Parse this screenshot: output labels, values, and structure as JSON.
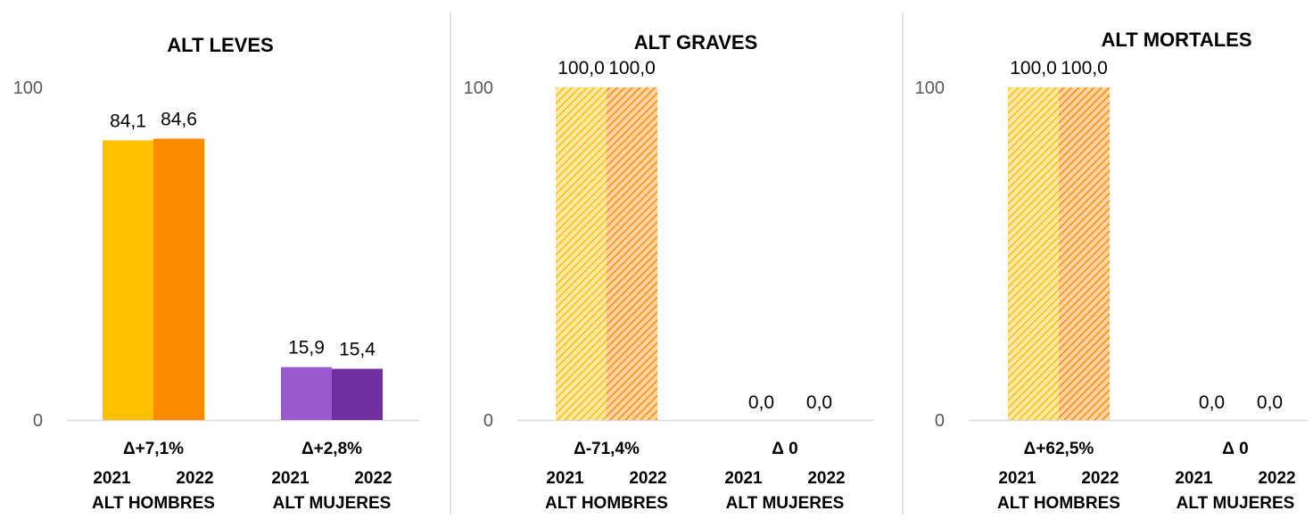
{
  "chart_data": [
    {
      "type": "bar",
      "title": "ALT LEVES",
      "ylim": [
        0,
        100
      ],
      "yticks": [
        0,
        100
      ],
      "grid": false,
      "groups": [
        {
          "label": "ALT HOMBRES",
          "delta": "Δ+7,1%",
          "bars": [
            {
              "year": "2021",
              "value": 84.1,
              "label": "84,1",
              "color": "#FFC000",
              "pattern": "solid"
            },
            {
              "year": "2022",
              "value": 84.6,
              "label": "84,6",
              "color": "#FF8C00",
              "pattern": "solid"
            }
          ]
        },
        {
          "label": "ALT MUJERES",
          "delta": "Δ+2,8%",
          "bars": [
            {
              "year": "2021",
              "value": 15.9,
              "label": "15,9",
              "color": "#9B59D0",
              "pattern": "solid"
            },
            {
              "year": "2022",
              "value": 15.4,
              "label": "15,4",
              "color": "#7030A0",
              "pattern": "solid"
            }
          ]
        }
      ]
    },
    {
      "type": "bar",
      "title": "ALT GRAVES",
      "ylim": [
        0,
        100
      ],
      "yticks": [
        0,
        100
      ],
      "grid": false,
      "groups": [
        {
          "label": "ALT HOMBRES",
          "delta": "Δ-71,4%",
          "bars": [
            {
              "year": "2021",
              "value": 100.0,
              "label": "100,0",
              "color": "#FFC000",
              "pattern": "hatched"
            },
            {
              "year": "2022",
              "value": 100.0,
              "label": "100,0",
              "color": "#FF8C00",
              "pattern": "hatched"
            }
          ]
        },
        {
          "label": "ALT MUJERES",
          "delta": "Δ 0",
          "bars": [
            {
              "year": "2021",
              "value": 0.0,
              "label": "0,0",
              "color": "#9B59D0",
              "pattern": "hatched"
            },
            {
              "year": "2022",
              "value": 0.0,
              "label": "0,0",
              "color": "#7030A0",
              "pattern": "hatched"
            }
          ]
        }
      ]
    },
    {
      "type": "bar",
      "title": "ALT MORTALES",
      "ylim": [
        0,
        100
      ],
      "yticks": [
        0,
        100
      ],
      "grid": false,
      "groups": [
        {
          "label": "ALT HOMBRES",
          "delta": "Δ+62,5%",
          "bars": [
            {
              "year": "2021",
              "value": 100.0,
              "label": "100,0",
              "color": "#FFC000",
              "pattern": "hatched"
            },
            {
              "year": "2022",
              "value": 100.0,
              "label": "100,0",
              "color": "#FF8C00",
              "pattern": "hatched"
            }
          ]
        },
        {
          "label": "ALT MUJERES",
          "delta": "Δ 0",
          "bars": [
            {
              "year": "2021",
              "value": 0.0,
              "label": "0,0",
              "color": "#9B59D0",
              "pattern": "hatched"
            },
            {
              "year": "2022",
              "value": 0.0,
              "label": "0,0",
              "color": "#7030A0",
              "pattern": "hatched"
            }
          ]
        }
      ]
    }
  ]
}
